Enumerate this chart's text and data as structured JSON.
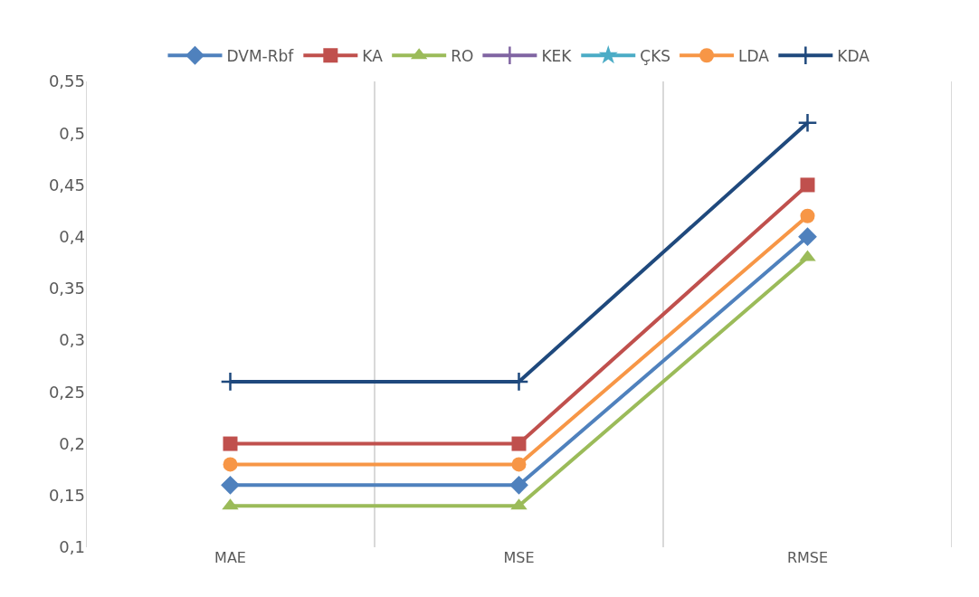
{
  "chart_data": {
    "type": "line",
    "categories": [
      "MAE",
      "MSE",
      "RMSE"
    ],
    "series": [
      {
        "name": "DVM-Rbf",
        "color": "#4f81bd",
        "marker": "diamond",
        "values": [
          0.16,
          0.16,
          0.4
        ]
      },
      {
        "name": "KA",
        "color": "#c0504d",
        "marker": "square",
        "values": [
          0.2,
          0.2,
          0.45
        ]
      },
      {
        "name": "RO",
        "color": "#9bbb59",
        "marker": "triangle",
        "values": [
          0.14,
          0.14,
          0.38
        ]
      },
      {
        "name": "KEK",
        "color": "#8064a2",
        "marker": "cross",
        "values": [
          null,
          null,
          null
        ]
      },
      {
        "name": "ÇKS",
        "color": "#4bacc6",
        "marker": "star",
        "values": [
          null,
          null,
          null
        ]
      },
      {
        "name": "LDA",
        "color": "#f79646",
        "marker": "circle",
        "values": [
          0.18,
          0.18,
          0.42
        ]
      },
      {
        "name": "KDA",
        "color": "#1f497d",
        "marker": "cross",
        "values": [
          0.26,
          0.26,
          0.51
        ]
      }
    ],
    "ylim": [
      0.1,
      0.55
    ],
    "yticks": [
      {
        "value": 0.1,
        "label": "0,1"
      },
      {
        "value": 0.15,
        "label": "0,15"
      },
      {
        "value": 0.2,
        "label": "0,2"
      },
      {
        "value": 0.25,
        "label": "0,25"
      },
      {
        "value": 0.3,
        "label": "0,3"
      },
      {
        "value": 0.35,
        "label": "0,35"
      },
      {
        "value": 0.4,
        "label": "0,4"
      },
      {
        "value": 0.45,
        "label": "0,45"
      },
      {
        "value": 0.5,
        "label": "0,5"
      },
      {
        "value": 0.55,
        "label": "0,55"
      }
    ],
    "grid": "x",
    "legend": "top",
    "line_style": "solid"
  }
}
